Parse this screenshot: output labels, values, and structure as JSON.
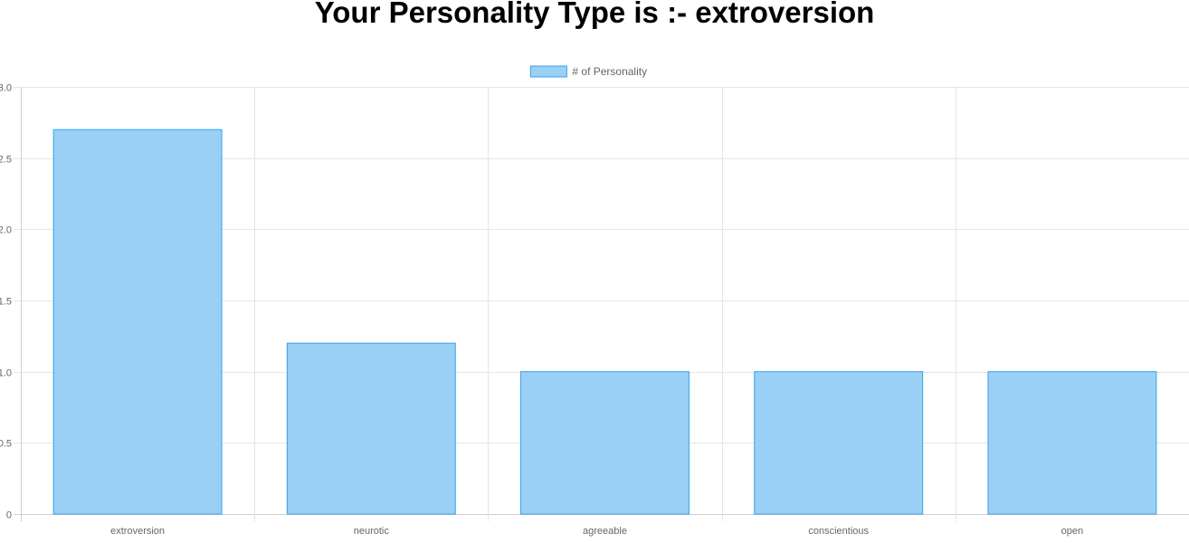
{
  "title": "Your Personality Type is :- extroversion",
  "chart_data": {
    "type": "bar",
    "categories": [
      "extroversion",
      "neurotic",
      "agreeable",
      "conscientious",
      "open"
    ],
    "series": [
      {
        "name": "# of Personality",
        "values": [
          2.7,
          1.2,
          1.0,
          1.0,
          1.0
        ]
      }
    ],
    "y_ticks": [
      "0",
      "0.5",
      "1.0",
      "1.5",
      "2.0",
      "2.5",
      "3.0"
    ],
    "ylim": [
      0,
      3
    ],
    "grid": true,
    "legend_position": "top",
    "colors": {
      "bar_fill": "#9ad0f5",
      "bar_border": "#36a2eb",
      "grid": "#e5e5e5",
      "text": "#666666"
    }
  }
}
